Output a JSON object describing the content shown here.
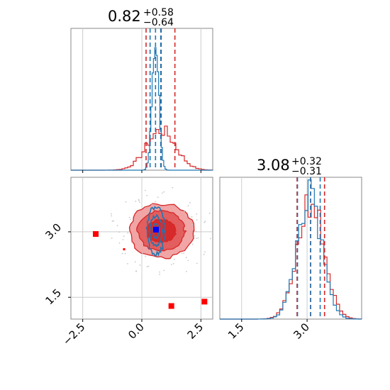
{
  "chart_data": {
    "type": "corner",
    "colors": {
      "blue": "#1f77b4",
      "red": "#d62728",
      "red_dark": "#d62728",
      "red_fill_light": "#f0a0a0",
      "red_fill_mid": "#e15a5a",
      "red_fill_dark": "#d62728",
      "marker_blue": "#0000ff",
      "grid": "#cccccc",
      "axis": "#888888"
    },
    "param1": {
      "title": {
        "value": "0.82",
        "plus": "+0.58",
        "minus": "−0.64"
      },
      "range": [
        -3.0,
        3.0
      ],
      "ticks": [
        {
          "value": -2.5,
          "label": "−2.5"
        },
        {
          "value": 0.0,
          "label": "0.0"
        },
        {
          "value": 2.5,
          "label": "2.5"
        }
      ],
      "red_quantiles": [
        0.18,
        0.82,
        1.4
      ],
      "blue_quantiles": [
        0.35,
        0.58,
        0.8
      ],
      "red_hist": {
        "center": 0.82,
        "sigma": 0.62,
        "peak": 0.28
      },
      "blue_hist": {
        "center": 0.58,
        "sigma": 0.14,
        "peak": 1.0
      }
    },
    "param2": {
      "title": {
        "value": "3.08",
        "plus": "+0.32",
        "minus": "−0.31"
      },
      "range": [
        1.0,
        4.25
      ],
      "ticks": [
        {
          "value": 1.5,
          "label": "1.5"
        },
        {
          "value": 3.0,
          "label": "3.0"
        }
      ],
      "red_quantiles": [
        2.77,
        3.08,
        3.4
      ],
      "blue_quantiles": [
        2.78,
        3.08,
        3.3
      ],
      "red_hist": {
        "center": 3.08,
        "sigma": 0.3,
        "peak": 0.84
      },
      "blue_hist": {
        "center": 3.05,
        "sigma": 0.28,
        "peak": 0.86
      }
    },
    "joint": {
      "red_center": [
        0.82,
        3.02
      ],
      "red_radii_x": [
        0.62,
        1.0,
        1.35
      ],
      "red_radii_y": [
        0.26,
        0.46,
        0.62
      ],
      "blue_center": [
        0.6,
        3.02
      ],
      "blue_radii_x": [
        0.12,
        0.26,
        0.38
      ],
      "blue_radii_y": [
        0.16,
        0.34,
        0.54
      ],
      "outlier_points": [
        [
          -1.95,
          2.95
        ],
        [
          1.25,
          1.3
        ],
        [
          2.65,
          1.4
        ]
      ],
      "blue_marker": [
        0.6,
        3.05
      ],
      "small_points": [
        [
          -0.75,
          2.6
        ]
      ]
    }
  }
}
